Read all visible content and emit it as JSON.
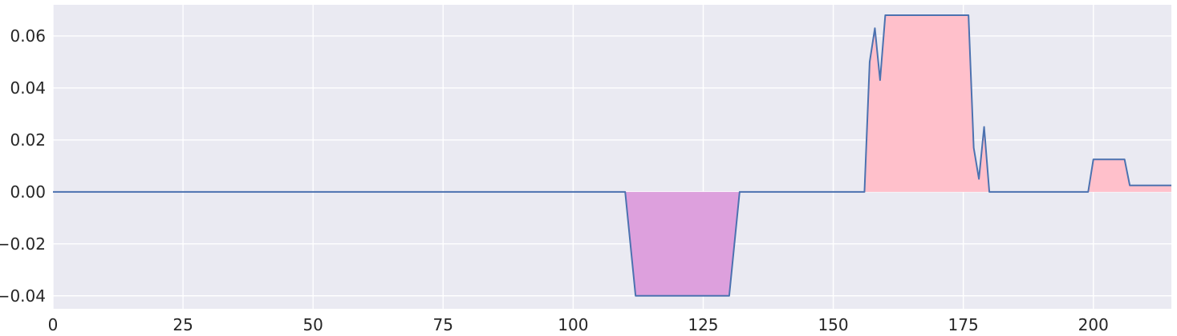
{
  "chart_data": {
    "type": "area",
    "title": "",
    "xlabel": "",
    "ylabel": "",
    "xlim": [
      0,
      215
    ],
    "ylim": [
      -0.045,
      0.072
    ],
    "grid": true,
    "legend": "none",
    "x_ticks": [
      0,
      25,
      50,
      75,
      100,
      125,
      150,
      175,
      200
    ],
    "x_tick_labels": [
      "0",
      "25",
      "50",
      "75",
      "100",
      "125",
      "150",
      "175",
      "200"
    ],
    "y_ticks": [
      -0.04,
      -0.02,
      0.0,
      0.02,
      0.04,
      0.06
    ],
    "y_tick_labels": [
      "−0.04",
      "−0.02",
      "0.00",
      "0.02",
      "0.04",
      "0.06"
    ],
    "series": [
      {
        "x": [
          0,
          110,
          112,
          130,
          132,
          156,
          157,
          158,
          159,
          160,
          176,
          177,
          178,
          179,
          180,
          199,
          200,
          206,
          207,
          215
        ],
        "y": [
          0,
          0,
          -0.04,
          -0.04,
          0,
          0,
          0.05,
          0.063,
          0.043,
          0.068,
          0.068,
          0.017,
          0.005,
          0.025,
          0,
          0,
          0.0125,
          0.0125,
          0.0025,
          0.0025
        ]
      }
    ],
    "colors": {
      "background": "#eaeaf2",
      "grid": "#ffffff",
      "line": "#4c72b0",
      "positive_fill": "#ffc0cb",
      "negative_fill": "#dda0dd"
    }
  }
}
